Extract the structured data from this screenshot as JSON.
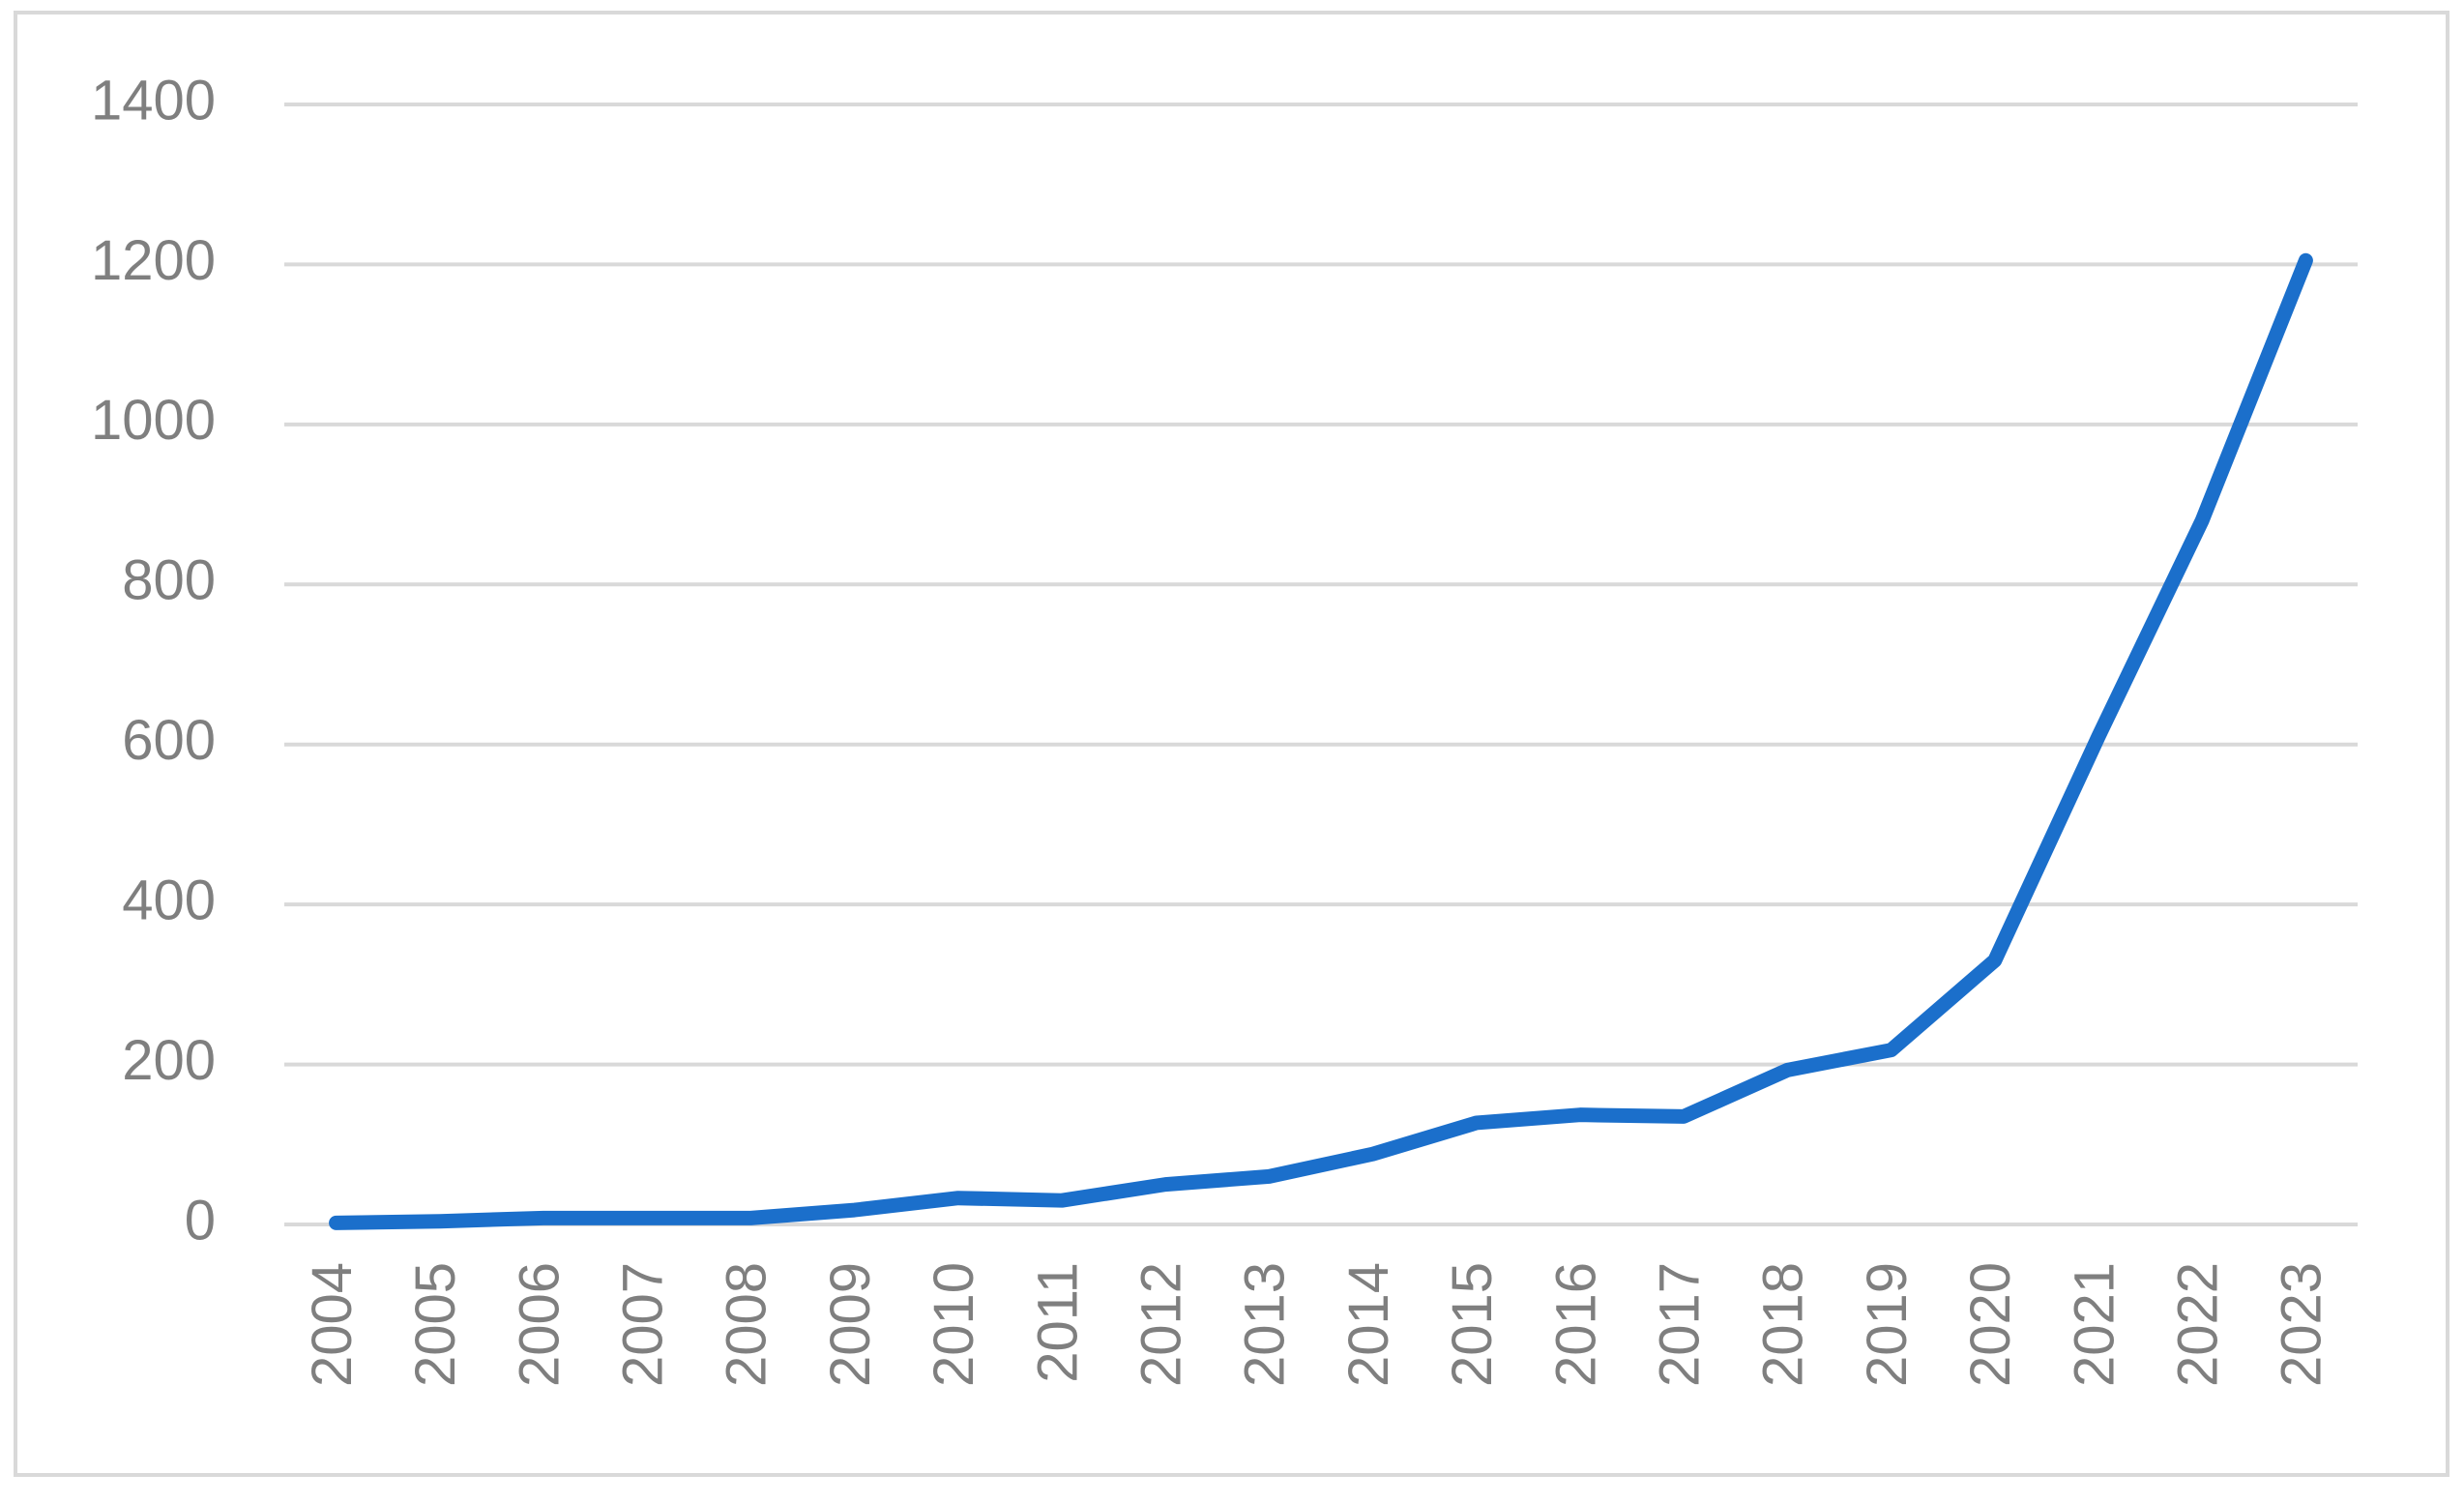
{
  "chart_data": {
    "type": "line",
    "categories": [
      "2004",
      "2005",
      "2006",
      "2007",
      "2008",
      "2009",
      "2010",
      "2011",
      "2012",
      "2013",
      "2014",
      "2015",
      "2016",
      "2017",
      "2018",
      "2019",
      "2020",
      "2021",
      "2022",
      "2023"
    ],
    "series": [
      {
        "color": "#1b6fcb",
        "values": [
          2,
          4,
          8,
          8,
          8,
          18,
          33,
          30,
          50,
          60,
          88,
          127,
          137,
          135,
          193,
          218,
          330,
          610,
          880,
          1205
        ]
      }
    ],
    "ylim": [
      0,
      1400
    ],
    "yticks": [
      0,
      200,
      400,
      600,
      800,
      1000,
      1200,
      1400
    ],
    "grid": true
  }
}
